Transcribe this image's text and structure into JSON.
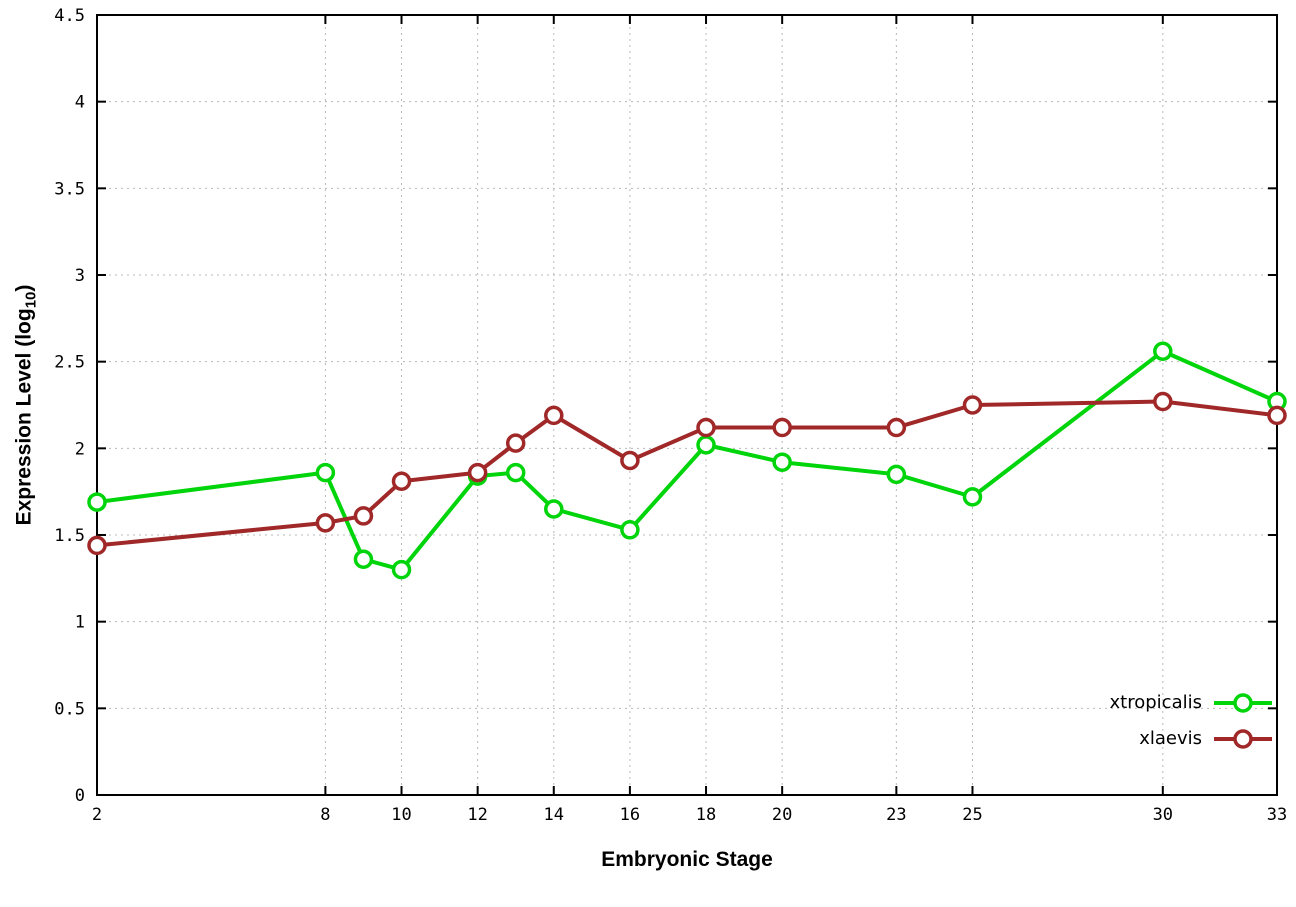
{
  "chart_data": {
    "type": "line",
    "title": "",
    "xlabel": "Embryonic Stage",
    "ylabel": "Expression Level (log10)",
    "ylabel_parts": {
      "prefix": "Expression Level (log",
      "sub": "10",
      "suffix": ")"
    },
    "xlim": [
      2,
      33
    ],
    "ylim": [
      0,
      4.5
    ],
    "xticks": [
      2,
      8,
      10,
      12,
      14,
      16,
      18,
      20,
      23,
      25,
      30,
      33
    ],
    "yticks": [
      0,
      0.5,
      1,
      1.5,
      2,
      2.5,
      3,
      3.5,
      4,
      4.5
    ],
    "grid": true,
    "legend_position": "bottom-right",
    "marker": "open-circle",
    "x": [
      2,
      8,
      9,
      10,
      12,
      13,
      14,
      16,
      18,
      20,
      23,
      25,
      30,
      33
    ],
    "series": [
      {
        "name": "xtropicalis",
        "color": "#00d40a",
        "values": [
          1.69,
          1.86,
          1.36,
          1.3,
          1.84,
          1.86,
          1.65,
          1.53,
          2.02,
          1.92,
          1.85,
          1.72,
          2.56,
          2.27
        ]
      },
      {
        "name": "xlaevis",
        "color": "#a02828",
        "values": [
          1.44,
          1.57,
          1.61,
          1.81,
          1.86,
          2.03,
          2.19,
          1.93,
          2.12,
          2.12,
          2.12,
          2.25,
          2.27,
          2.19
        ]
      }
    ]
  }
}
